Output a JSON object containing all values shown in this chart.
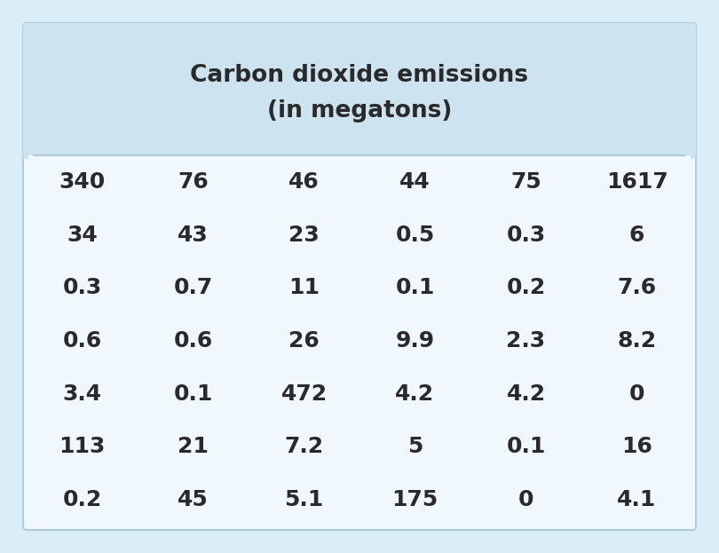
{
  "title_line1": "Carbon dioxide emissions",
  "title_line2": "(in megatons)",
  "title_bg_color": "#cde4f0",
  "body_bg_color": "#f0f8fd",
  "outer_bg_color": "#daeef8",
  "border_color": "#b0ccd8",
  "separator_color": "#b0ccd8",
  "table_data": [
    [
      "340",
      "76",
      "46",
      "44",
      "75",
      "1617"
    ],
    [
      "34",
      "43",
      "23",
      "0.5",
      "0.3",
      "6"
    ],
    [
      "0.3",
      "0.7",
      "11",
      "0.1",
      "0.2",
      "7.6"
    ],
    [
      "0.6",
      "0.6",
      "26",
      "9.9",
      "2.3",
      "8.2"
    ],
    [
      "3.4",
      "0.1",
      "472",
      "4.2",
      "4.2",
      "0"
    ],
    [
      "113",
      "21",
      "7.2",
      "5",
      "0.1",
      "16"
    ],
    [
      "0.2",
      "45",
      "5.1",
      "175",
      "0",
      "4.1"
    ]
  ],
  "text_color": "#2a2a2a",
  "font_size_title": 19,
  "font_size_data": 18,
  "num_cols": 6,
  "num_rows": 7,
  "fig_width": 8.1,
  "fig_height": 6.23,
  "dpi": 100
}
